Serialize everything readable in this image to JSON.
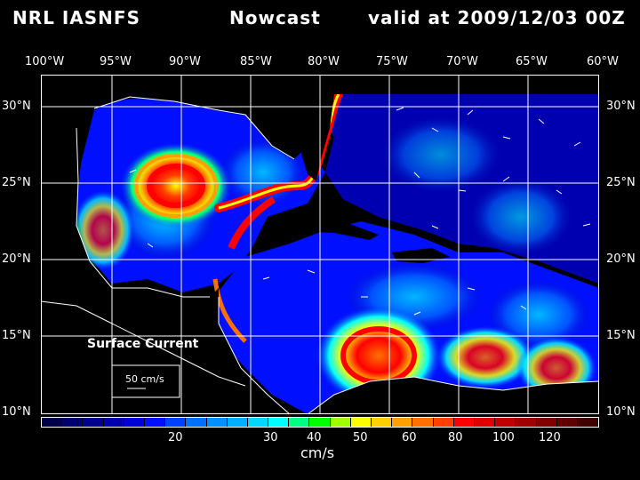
{
  "header": {
    "agency": "NRL IASNFS",
    "product": "Nowcast",
    "valid": "valid at 2009/12/03 00Z"
  },
  "axes": {
    "lon_labels": [
      "100°W",
      "95°W",
      "90°W",
      "85°W",
      "80°W",
      "75°W",
      "70°W",
      "65°W",
      "60°W"
    ],
    "lat_labels": [
      "30°N",
      "25°N",
      "20°N",
      "15°N",
      "10°N"
    ]
  },
  "map": {
    "field": "Surface Current",
    "legend_vector": "50 cm/s",
    "background_color": "#000000",
    "gridline_color": "#ffffff",
    "coastline_color": "#ffffff",
    "lon_range": [
      -100,
      -60
    ],
    "lat_range": [
      10,
      31
    ]
  },
  "colorbar": {
    "unit_label": "cm/s",
    "tick_labels": [
      "20",
      "30",
      "40",
      "50",
      "60",
      "80",
      "100",
      "120"
    ],
    "colors": [
      "#00004a",
      "#000070",
      "#000090",
      "#0000b0",
      "#0000d8",
      "#0010ff",
      "#0040ff",
      "#0070ff",
      "#0090ff",
      "#00b0ff",
      "#00d8ff",
      "#00ffff",
      "#00ff80",
      "#00ff00",
      "#a0ff00",
      "#ffff00",
      "#ffd000",
      "#ffa000",
      "#ff7000",
      "#ff4000",
      "#ff0000",
      "#e00000",
      "#c00000",
      "#a00000",
      "#800000",
      "#600000",
      "#400000"
    ]
  }
}
